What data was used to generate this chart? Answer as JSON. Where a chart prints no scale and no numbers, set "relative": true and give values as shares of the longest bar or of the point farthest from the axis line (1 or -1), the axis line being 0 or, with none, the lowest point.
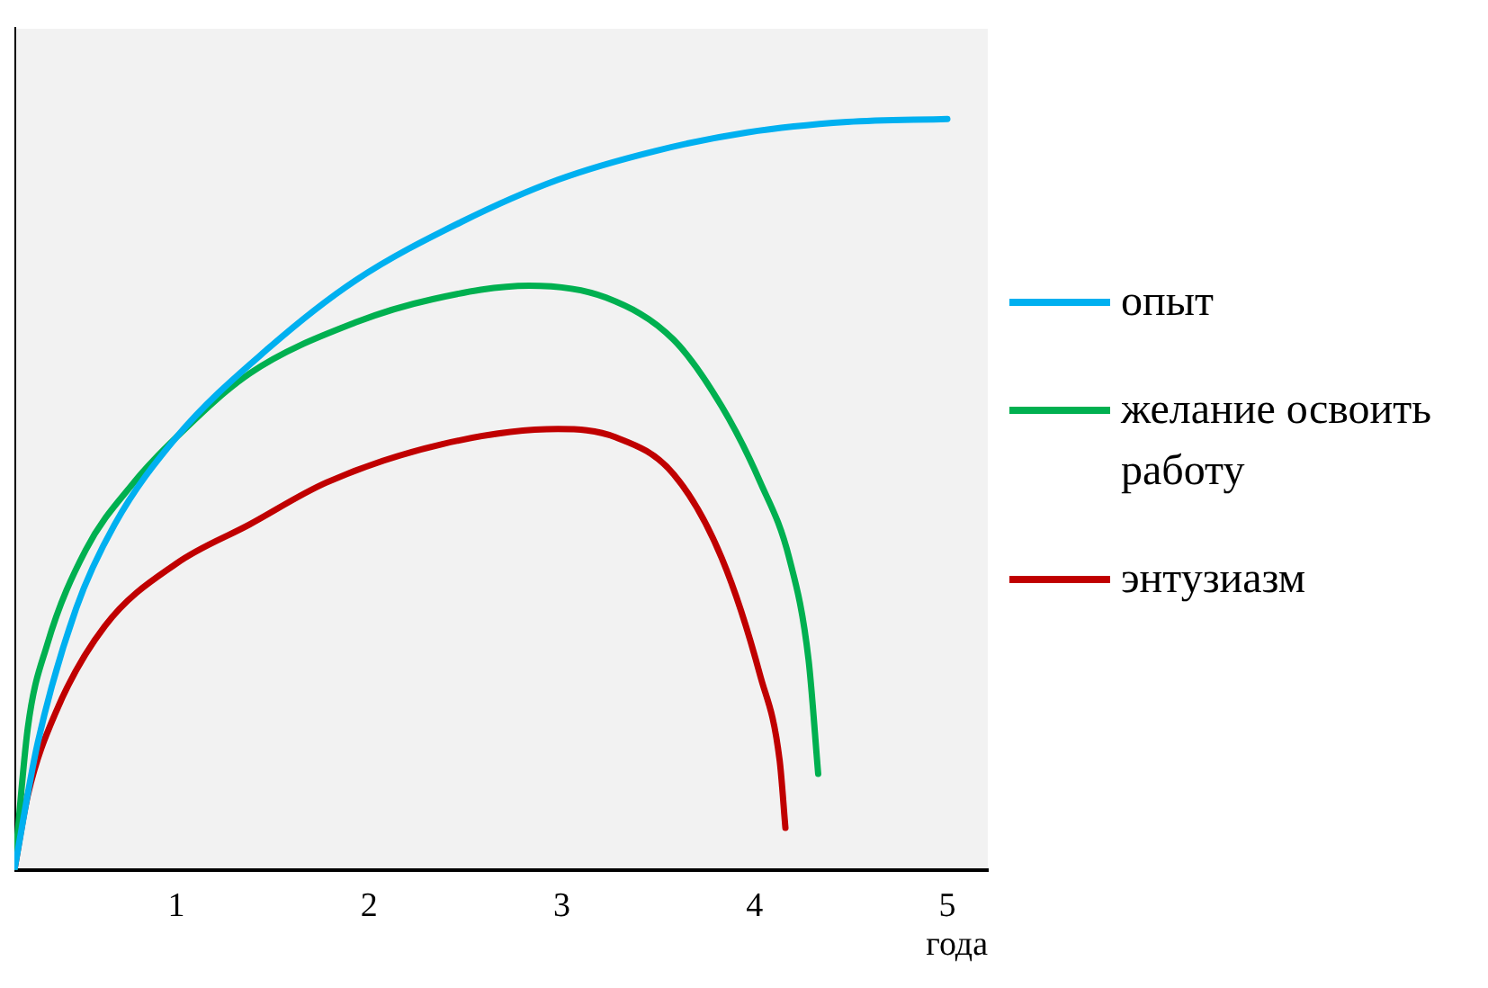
{
  "chart_data": {
    "type": "line",
    "relative": true,
    "xlabel": "года",
    "xlim": [
      0.16,
      5.21
    ],
    "xticks": [
      1,
      2,
      3,
      4,
      5
    ],
    "grid": false,
    "legend": "right",
    "marker": "none",
    "line_style": "solid",
    "series": [
      {
        "name": "опыт",
        "color": "#00b0f0",
        "x": [
          0.16,
          0.28,
          0.48,
          0.68,
          1.0,
          1.48,
          1.93,
          2.48,
          2.98,
          3.48,
          3.96,
          4.48,
          5.0
        ],
        "values": [
          0,
          0.168,
          0.348,
          0.46,
          0.576,
          0.695,
          0.785,
          0.863,
          0.919,
          0.957,
          0.982,
          0.996,
          1.0
        ]
      },
      {
        "name": "желание освоить работу",
        "color": "#00b050",
        "x": [
          0.16,
          0.23,
          0.33,
          0.53,
          0.78,
          1.0,
          1.38,
          1.93,
          2.33,
          2.83,
          3.23,
          3.58,
          3.83,
          4.03,
          4.18,
          4.28,
          4.33
        ],
        "values": [
          0,
          0.19,
          0.3,
          0.426,
          0.516,
          0.576,
          0.661,
          0.729,
          0.76,
          0.778,
          0.762,
          0.706,
          0.617,
          0.516,
          0.415,
          0.28,
          0.128
        ]
      },
      {
        "name": "энтузиазм",
        "color": "#c00000",
        "x": [
          0.16,
          0.23,
          0.38,
          0.63,
          1.0,
          1.38,
          1.78,
          2.38,
          2.98,
          3.28,
          3.58,
          3.83,
          4.03,
          4.13,
          4.16
        ],
        "values": [
          0,
          0.1,
          0.213,
          0.325,
          0.408,
          0.46,
          0.516,
          0.567,
          0.587,
          0.576,
          0.527,
          0.415,
          0.258,
          0.146,
          0.056
        ]
      }
    ]
  }
}
